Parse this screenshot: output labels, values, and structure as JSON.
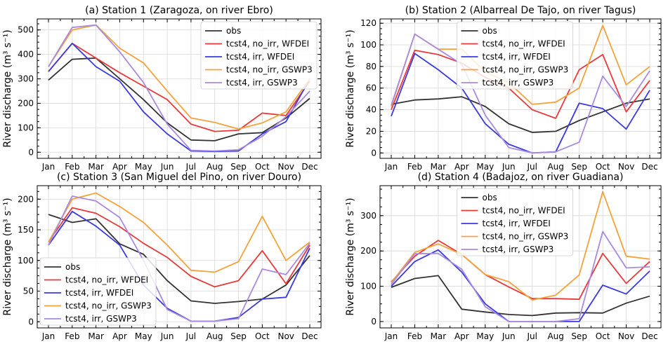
{
  "series_meta": [
    {
      "name": "obs",
      "color": "#333333"
    },
    {
      "name": "tcst4, no_irr, WFDEI",
      "color": "#e83a3a"
    },
    {
      "name": "tcst4, irr, WFDEI",
      "color": "#3a3ae0"
    },
    {
      "name": "tcst4, no_irr, GSWP3",
      "color": "#f5a23a"
    },
    {
      "name": "tcst4, irr, GSWP3",
      "color": "#a98ae0"
    }
  ],
  "chart_data": [
    {
      "type": "line",
      "title": "(a) Station 1 (Zaragoza, on river Ebro)",
      "ylabel": "River discharge (m³ s⁻¹)",
      "categories": [
        "Jan",
        "Feb",
        "Mar",
        "Apr",
        "May",
        "Jun",
        "Jul",
        "Aug",
        "Sep",
        "Oct",
        "Nov",
        "Dec"
      ],
      "ylim": [
        -25,
        545
      ],
      "yticks": [
        0,
        100,
        200,
        300,
        400,
        500
      ],
      "grid": true,
      "legend": "top-right",
      "series": [
        {
          "name": "obs",
          "values": [
            295,
            380,
            385,
            300,
            215,
            120,
            50,
            47,
            75,
            80,
            140,
            220
          ]
        },
        {
          "name": "tcst4, no_irr, WFDEI",
          "values": [
            330,
            445,
            385,
            325,
            270,
            215,
            115,
            85,
            90,
            160,
            150,
            290
          ]
        },
        {
          "name": "tcst4, irr, WFDEI",
          "values": [
            330,
            445,
            350,
            290,
            165,
            75,
            5,
            3,
            5,
            75,
            125,
            300
          ]
        },
        {
          "name": "tcst4, no_irr, GSWP3",
          "values": [
            350,
            500,
            520,
            425,
            365,
            250,
            140,
            122,
            95,
            120,
            165,
            300
          ]
        },
        {
          "name": "tcst4, irr, GSWP3",
          "values": [
            350,
            510,
            520,
            410,
            285,
            115,
            8,
            5,
            10,
            65,
            145,
            250
          ]
        }
      ]
    },
    {
      "type": "line",
      "title": "(b) Station 2 (Albarreal De Tajo, on river Tagus)",
      "ylabel": "River discharge (m³ s⁻¹)",
      "categories": [
        "Jan",
        "Feb",
        "Mar",
        "Apr",
        "May",
        "Jun",
        "Jul",
        "Aug",
        "Sep",
        "Oct",
        "Nov",
        "Dec"
      ],
      "ylim": [
        -5,
        124
      ],
      "yticks": [
        0,
        20,
        40,
        60,
        80,
        100,
        120
      ],
      "grid": true,
      "legend": "top-center",
      "series": [
        {
          "name": "obs",
          "values": [
            45,
            49,
            50,
            52,
            43,
            27,
            19,
            20,
            30,
            38,
            46,
            50
          ]
        },
        {
          "name": "tcst4, no_irr, WFDEI",
          "values": [
            40,
            95,
            91,
            83,
            70,
            60,
            40,
            32,
            77,
            91,
            38,
            67
          ]
        },
        {
          "name": "tcst4, irr, WFDEI",
          "values": [
            34,
            92,
            77,
            60,
            27,
            8,
            0,
            1,
            46,
            41,
            22,
            58
          ]
        },
        {
          "name": "tcst4, no_irr, GSWP3",
          "values": [
            43,
            110,
            96,
            96,
            75,
            65,
            45,
            47,
            60,
            118,
            63,
            80
          ]
        },
        {
          "name": "tcst4, irr, GSWP3",
          "values": [
            44,
            110,
            96,
            82,
            35,
            5,
            0,
            1,
            10,
            71,
            43,
            76
          ]
        }
      ]
    },
    {
      "type": "line",
      "title": "(c) Station 3 (San Miguel del Pino, on river Douro)",
      "ylabel": "River discharge (m³ s⁻¹)",
      "categories": [
        "Jan",
        "Feb",
        "Mar",
        "Apr",
        "May",
        "Jun",
        "Jul",
        "Aug",
        "Sep",
        "Oct",
        "Nov",
        "Dec"
      ],
      "ylim": [
        -10,
        222
      ],
      "yticks": [
        0,
        50,
        100,
        150,
        200
      ],
      "grid": true,
      "legend": "bottom-left",
      "series": [
        {
          "name": "obs",
          "values": [
            175,
            162,
            168,
            127,
            110,
            67,
            34,
            30,
            33,
            37,
            60,
            108
          ]
        },
        {
          "name": "tcst4, no_irr, WFDEI",
          "values": [
            130,
            186,
            177,
            155,
            128,
            105,
            74,
            57,
            67,
            116,
            62,
            125
          ]
        },
        {
          "name": "tcst4, irr, WFDEI",
          "values": [
            125,
            180,
            156,
            125,
            60,
            22,
            1,
            1,
            7,
            37,
            40,
            120
          ]
        },
        {
          "name": "tcst4, no_irr, GSWP3",
          "values": [
            130,
            200,
            210,
            188,
            162,
            125,
            84,
            81,
            98,
            172,
            100,
            130
          ]
        },
        {
          "name": "tcst4, irr, GSWP3",
          "values": [
            125,
            205,
            197,
            170,
            100,
            20,
            1,
            1,
            5,
            86,
            77,
            128
          ]
        }
      ]
    },
    {
      "type": "line",
      "title": "(d) Station 4 (Badajoz, on river Guadiana)",
      "ylabel": "River discharge (m³ s⁻¹)",
      "categories": [
        "Jan",
        "Feb",
        "Mar",
        "Apr",
        "May",
        "Jun",
        "Jul",
        "Aug",
        "Sep",
        "Oct",
        "Nov",
        "Dec"
      ],
      "ylim": [
        -18,
        385
      ],
      "yticks": [
        0,
        100,
        200,
        300
      ],
      "grid": true,
      "legend": "top-center",
      "series": [
        {
          "name": "obs",
          "values": [
            97,
            122,
            130,
            35,
            27,
            20,
            17,
            24,
            25,
            24,
            52,
            72
          ]
        },
        {
          "name": "tcst4, no_irr, WFDEI",
          "values": [
            112,
            185,
            230,
            190,
            133,
            98,
            65,
            65,
            63,
            193,
            108,
            170
          ]
        },
        {
          "name": "tcst4, irr, WFDEI",
          "values": [
            100,
            170,
            203,
            140,
            50,
            0,
            0,
            0,
            0,
            103,
            78,
            143
          ]
        },
        {
          "name": "tcst4, no_irr, GSWP3",
          "values": [
            110,
            196,
            220,
            190,
            133,
            113,
            61,
            75,
            132,
            368,
            185,
            177
          ]
        },
        {
          "name": "tcst4, irr, GSWP3",
          "values": [
            105,
            192,
            193,
            148,
            42,
            0,
            0,
            0,
            8,
            255,
            152,
            155
          ]
        }
      ]
    }
  ]
}
